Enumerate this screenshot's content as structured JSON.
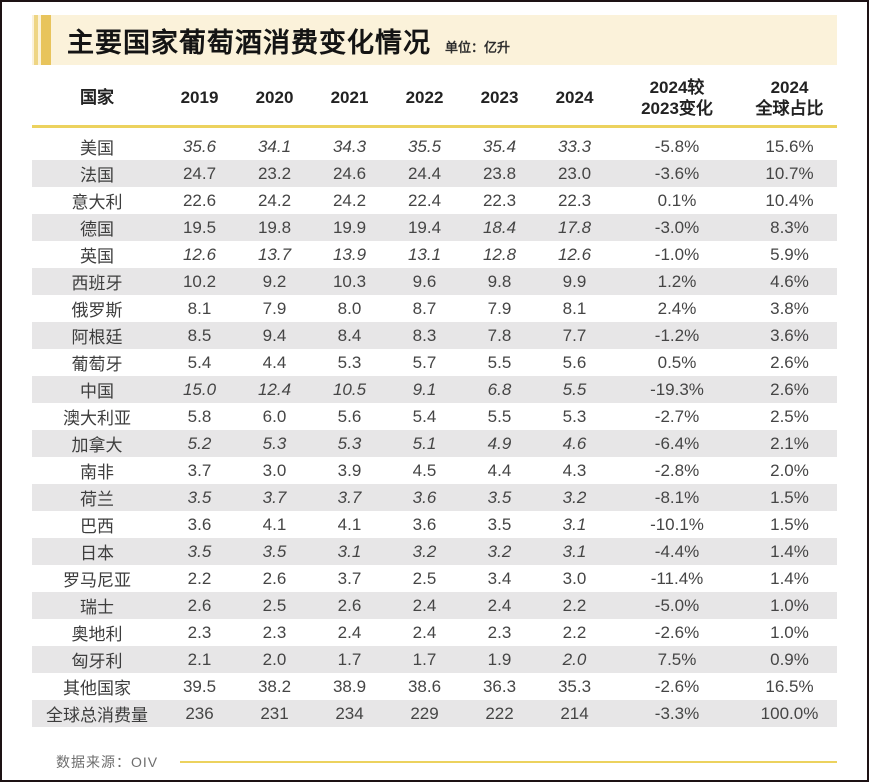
{
  "page": {
    "title": "主要国家葡萄酒消费变化情况",
    "unit_label": "单位：亿升",
    "source_label": "数据来源：OIV"
  },
  "chart_data": {
    "type": "table",
    "title": "主要国家葡萄酒消费变化情况",
    "unit": "亿升",
    "source": "OIV",
    "columns": [
      "国家",
      "2019",
      "2020",
      "2021",
      "2022",
      "2023",
      "2024",
      "2024较\n2023变化",
      "2024\n全球占比"
    ],
    "note": "italic values shown in italics in original (provisional figures)",
    "rows": [
      {
        "country": "美国",
        "values": [
          "35.6",
          "34.1",
          "34.3",
          "35.5",
          "35.4",
          "33.3"
        ],
        "italic": [
          true,
          true,
          true,
          true,
          true,
          true
        ],
        "change": "-5.8%",
        "share": "15.6%"
      },
      {
        "country": "法国",
        "values": [
          "24.7",
          "23.2",
          "24.6",
          "24.4",
          "23.8",
          "23.0"
        ],
        "italic": [
          false,
          false,
          false,
          false,
          false,
          false
        ],
        "change": "-3.6%",
        "share": "10.7%"
      },
      {
        "country": "意大利",
        "values": [
          "22.6",
          "24.2",
          "24.2",
          "22.4",
          "22.3",
          "22.3"
        ],
        "italic": [
          false,
          false,
          false,
          false,
          false,
          false
        ],
        "change": "0.1%",
        "share": "10.4%"
      },
      {
        "country": "德国",
        "values": [
          "19.5",
          "19.8",
          "19.9",
          "19.4",
          "18.4",
          "17.8"
        ],
        "italic": [
          false,
          false,
          false,
          false,
          true,
          true
        ],
        "change": "-3.0%",
        "share": "8.3%"
      },
      {
        "country": "英国",
        "values": [
          "12.6",
          "13.7",
          "13.9",
          "13.1",
          "12.8",
          "12.6"
        ],
        "italic": [
          true,
          true,
          true,
          true,
          true,
          true
        ],
        "change": "-1.0%",
        "share": "5.9%"
      },
      {
        "country": "西班牙",
        "values": [
          "10.2",
          "9.2",
          "10.3",
          "9.6",
          "9.8",
          "9.9"
        ],
        "italic": [
          false,
          false,
          false,
          false,
          false,
          false
        ],
        "change": "1.2%",
        "share": "4.6%"
      },
      {
        "country": "俄罗斯",
        "values": [
          "8.1",
          "7.9",
          "8.0",
          "8.7",
          "7.9",
          "8.1"
        ],
        "italic": [
          false,
          false,
          false,
          false,
          false,
          false
        ],
        "change": "2.4%",
        "share": "3.8%"
      },
      {
        "country": "阿根廷",
        "values": [
          "8.5",
          "9.4",
          "8.4",
          "8.3",
          "7.8",
          "7.7"
        ],
        "italic": [
          false,
          false,
          false,
          false,
          false,
          false
        ],
        "change": "-1.2%",
        "share": "3.6%"
      },
      {
        "country": "葡萄牙",
        "values": [
          "5.4",
          "4.4",
          "5.3",
          "5.7",
          "5.5",
          "5.6"
        ],
        "italic": [
          false,
          false,
          false,
          false,
          false,
          false
        ],
        "change": "0.5%",
        "share": "2.6%"
      },
      {
        "country": "中国",
        "values": [
          "15.0",
          "12.4",
          "10.5",
          "9.1",
          "6.8",
          "5.5"
        ],
        "italic": [
          true,
          true,
          true,
          true,
          true,
          true
        ],
        "change": "-19.3%",
        "share": "2.6%"
      },
      {
        "country": "澳大利亚",
        "values": [
          "5.8",
          "6.0",
          "5.6",
          "5.4",
          "5.5",
          "5.3"
        ],
        "italic": [
          false,
          false,
          false,
          false,
          false,
          false
        ],
        "change": "-2.7%",
        "share": "2.5%"
      },
      {
        "country": "加拿大",
        "values": [
          "5.2",
          "5.3",
          "5.3",
          "5.1",
          "4.9",
          "4.6"
        ],
        "italic": [
          true,
          true,
          true,
          true,
          true,
          true
        ],
        "change": "-6.4%",
        "share": "2.1%"
      },
      {
        "country": "南非",
        "values": [
          "3.7",
          "3.0",
          "3.9",
          "4.5",
          "4.4",
          "4.3"
        ],
        "italic": [
          false,
          false,
          false,
          false,
          false,
          false
        ],
        "change": "-2.8%",
        "share": "2.0%"
      },
      {
        "country": "荷兰",
        "values": [
          "3.5",
          "3.7",
          "3.7",
          "3.6",
          "3.5",
          "3.2"
        ],
        "italic": [
          true,
          true,
          true,
          true,
          true,
          true
        ],
        "change": "-8.1%",
        "share": "1.5%"
      },
      {
        "country": "巴西",
        "values": [
          "3.6",
          "4.1",
          "4.1",
          "3.6",
          "3.5",
          "3.1"
        ],
        "italic": [
          false,
          false,
          false,
          false,
          false,
          true
        ],
        "change": "-10.1%",
        "share": "1.5%"
      },
      {
        "country": "日本",
        "values": [
          "3.5",
          "3.5",
          "3.1",
          "3.2",
          "3.2",
          "3.1"
        ],
        "italic": [
          true,
          true,
          true,
          true,
          true,
          true
        ],
        "change": "-4.4%",
        "share": "1.4%"
      },
      {
        "country": "罗马尼亚",
        "values": [
          "2.2",
          "2.6",
          "3.7",
          "2.5",
          "3.4",
          "3.0"
        ],
        "italic": [
          false,
          false,
          false,
          false,
          false,
          false
        ],
        "change": "-11.4%",
        "share": "1.4%"
      },
      {
        "country": "瑞士",
        "values": [
          "2.6",
          "2.5",
          "2.6",
          "2.4",
          "2.4",
          "2.2"
        ],
        "italic": [
          false,
          false,
          false,
          false,
          false,
          false
        ],
        "change": "-5.0%",
        "share": "1.0%"
      },
      {
        "country": "奥地利",
        "values": [
          "2.3",
          "2.3",
          "2.4",
          "2.4",
          "2.3",
          "2.2"
        ],
        "italic": [
          false,
          false,
          false,
          false,
          false,
          false
        ],
        "change": "-2.6%",
        "share": "1.0%"
      },
      {
        "country": "匈牙利",
        "values": [
          "2.1",
          "2.0",
          "1.7",
          "1.7",
          "1.9",
          "2.0"
        ],
        "italic": [
          false,
          false,
          false,
          false,
          false,
          true
        ],
        "change": "7.5%",
        "share": "0.9%"
      },
      {
        "country": "其他国家",
        "values": [
          "39.5",
          "38.2",
          "38.9",
          "38.6",
          "36.3",
          "35.3"
        ],
        "italic": [
          false,
          false,
          false,
          false,
          false,
          false
        ],
        "change": "-2.6%",
        "share": "16.5%"
      },
      {
        "country": "全球总消费量",
        "values": [
          "236",
          "231",
          "234",
          "229",
          "222",
          "214"
        ],
        "italic": [
          false,
          false,
          false,
          false,
          false,
          false
        ],
        "change": "-3.3%",
        "share": "100.0%"
      }
    ]
  },
  "colors": {
    "accent_gold": "#e8c45c",
    "accent_gold_light": "#eed584",
    "rule_gold": "#ecd25e",
    "title_background": "#fbf2da",
    "alt_row_background": "#e7e6e7",
    "page_border": "#1d1214",
    "body_text": "#454545"
  }
}
